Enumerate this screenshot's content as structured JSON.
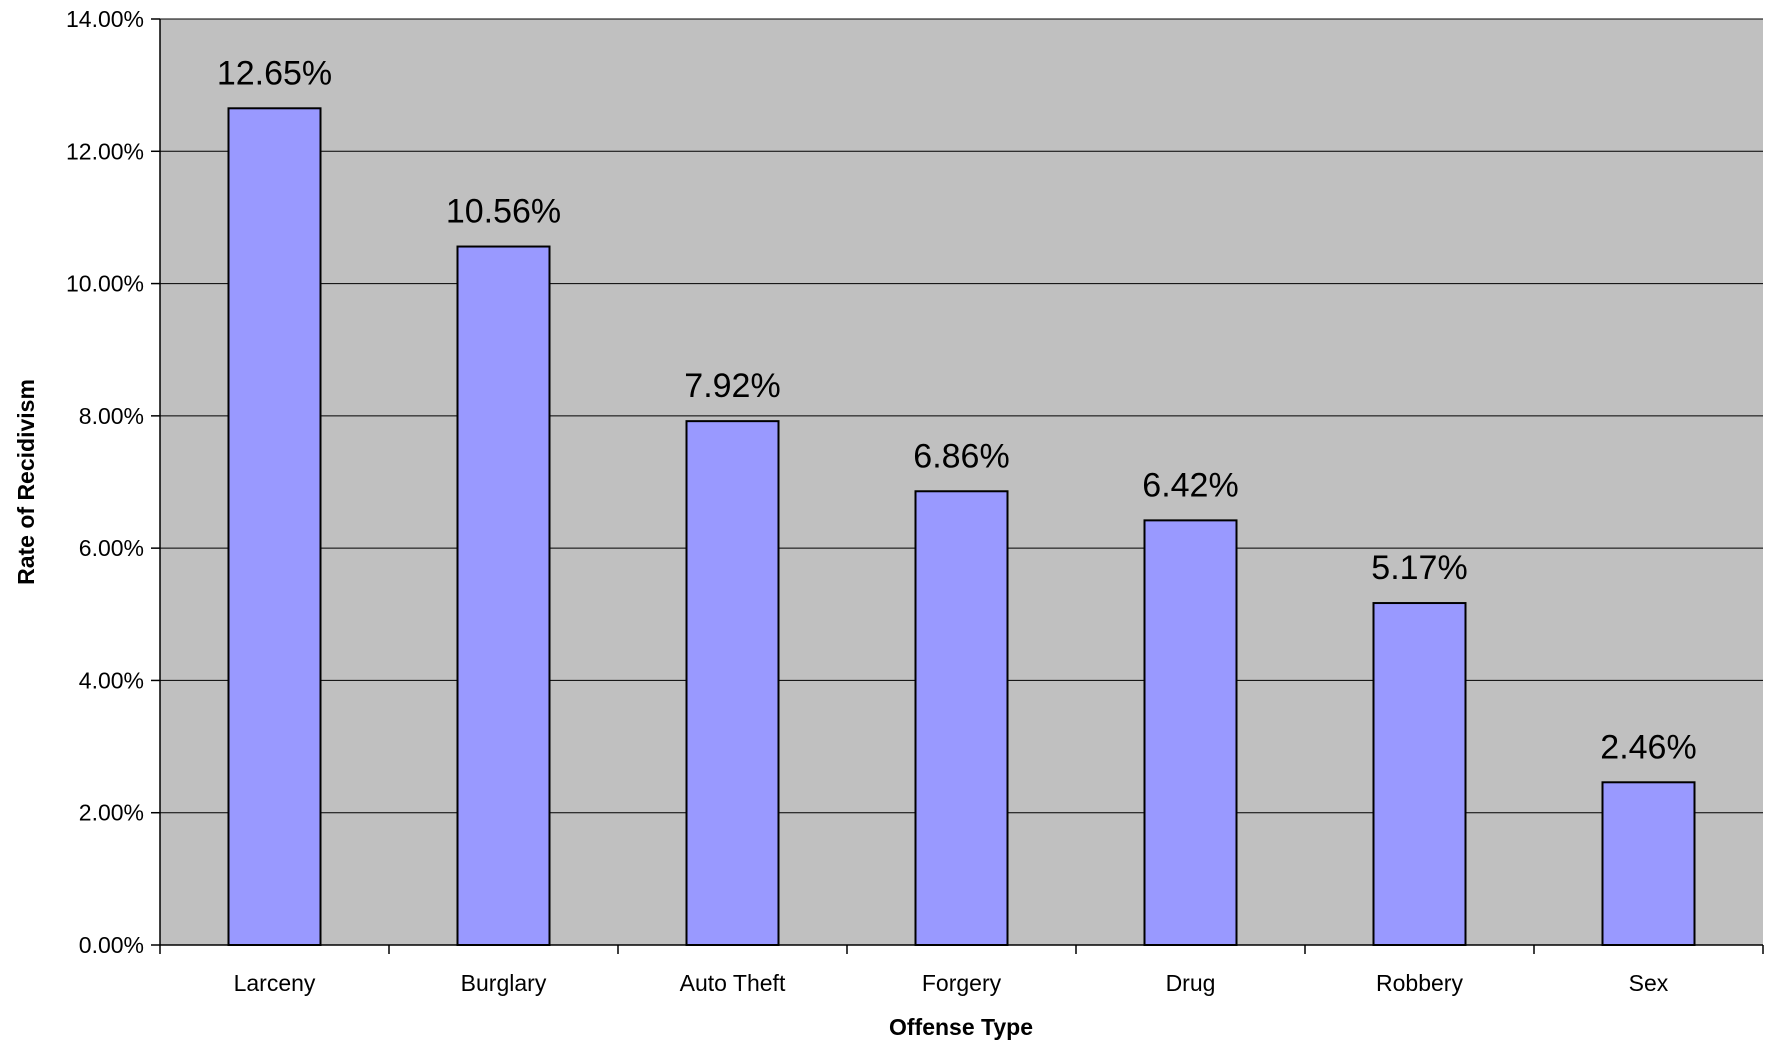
{
  "chart_data": {
    "type": "bar",
    "title": "",
    "xlabel": "Offense Type",
    "ylabel": "Rate of Recidivism",
    "categories": [
      "Larceny",
      "Burglary",
      "Auto Theft",
      "Forgery",
      "Drug",
      "Robbery",
      "Sex"
    ],
    "values": [
      12.65,
      10.56,
      7.92,
      6.86,
      6.42,
      5.17,
      2.46
    ],
    "value_labels": [
      "12.65%",
      "10.56%",
      "7.92%",
      "6.86%",
      "6.42%",
      "5.17%",
      "2.46%"
    ],
    "ylim": [
      0,
      14
    ],
    "y_ticks": [
      0,
      2,
      4,
      6,
      8,
      10,
      12,
      14
    ],
    "y_tick_labels": [
      "0.00%",
      "2.00%",
      "4.00%",
      "6.00%",
      "8.00%",
      "10.00%",
      "12.00%",
      "14.00%"
    ],
    "grid": true,
    "legend": "none",
    "colors": {
      "bar_fill": "#9999ff",
      "bar_stroke": "#000000",
      "plot_background": "#c0c0c0",
      "gridline": "#000000"
    }
  }
}
